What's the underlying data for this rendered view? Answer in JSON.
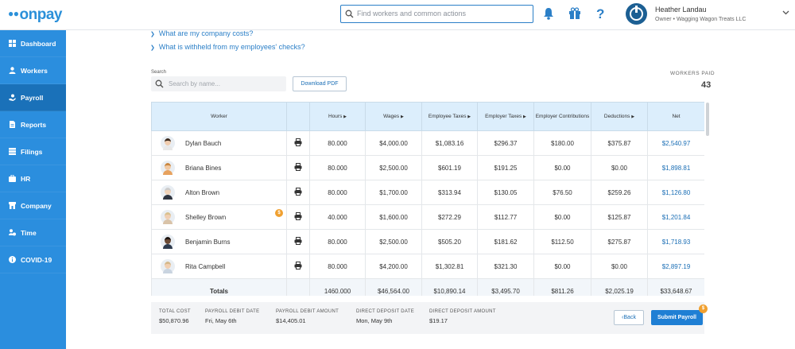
{
  "app": {
    "logo": "onpay"
  },
  "topbar": {
    "search_placeholder": "Find workers and common actions",
    "help_label": "?",
    "user_name": "Heather Landau",
    "user_role": "Owner • Wagging Wagon Treats LLC"
  },
  "sidebar": {
    "items": [
      {
        "label": "Dashboard",
        "icon": "dashboard-icon"
      },
      {
        "label": "Workers",
        "icon": "workers-icon"
      },
      {
        "label": "Payroll",
        "icon": "payroll-icon",
        "active": true
      },
      {
        "label": "Reports",
        "icon": "reports-icon"
      },
      {
        "label": "Filings",
        "icon": "filings-icon"
      },
      {
        "label": "HR",
        "icon": "hr-icon"
      },
      {
        "label": "Company",
        "icon": "company-icon"
      },
      {
        "label": "Time",
        "icon": "time-icon"
      },
      {
        "label": "COVID-19",
        "icon": "info-icon"
      }
    ]
  },
  "faq": [
    "What are my company costs?",
    "What is withheld from my employees' checks?"
  ],
  "search": {
    "label": "Search",
    "placeholder": "Search by name..."
  },
  "download_label": "Download PDF",
  "workers_paid": {
    "label": "WORKERS PAID",
    "count": "43"
  },
  "table": {
    "headers": {
      "worker": "Worker",
      "hours": "Hours",
      "wages": "Wages",
      "employee_taxes": "Employee Taxes",
      "employer_taxes": "Employer Taxes",
      "employer_contributions": "Employer Contributions",
      "deductions": "Deductions",
      "net": "Net"
    },
    "rows": [
      {
        "name": "Dylan Bauch",
        "hours": "80.000",
        "wages": "$4,000.00",
        "employee_taxes": "$1,083.16",
        "employer_taxes": "$296.37",
        "contributions": "$180.00",
        "deductions": "$375.87",
        "net": "$2,540.97",
        "shirt": "#e8e8e8",
        "skin": "#f0cdb0",
        "hair": "#3b2a1e"
      },
      {
        "name": "Briana Bines",
        "hours": "80.000",
        "wages": "$2,500.00",
        "employee_taxes": "$601.19",
        "employer_taxes": "$191.25",
        "contributions": "$0.00",
        "deductions": "$0.00",
        "net": "$1,898.81",
        "shirt": "#e7a25e",
        "skin": "#f1c9a3",
        "hair": "#c9863f"
      },
      {
        "name": "Alton Brown",
        "hours": "80.000",
        "wages": "$1,700.00",
        "employee_taxes": "$313.94",
        "employer_taxes": "$130.05",
        "contributions": "$76.50",
        "deductions": "$259.26",
        "net": "$1,126.80",
        "shirt": "#2e3440",
        "skin": "#efd2b8",
        "hair": "#cccccc"
      },
      {
        "name": "Shelley Brown",
        "hours": "40.000",
        "wages": "$1,600.00",
        "employee_taxes": "$272.29",
        "employer_taxes": "$112.77",
        "contributions": "$0.00",
        "deductions": "$125.87",
        "net": "$1,201.84",
        "shirt": "#d9c3a8",
        "skin": "#f0cfb3",
        "hair": "#d9c08e",
        "badge": "$"
      },
      {
        "name": "Benjamin Burns",
        "hours": "80.000",
        "wages": "$2,500.00",
        "employee_taxes": "$505.20",
        "employer_taxes": "$181.62",
        "contributions": "$112.50",
        "deductions": "$275.87",
        "net": "$1,718.93",
        "shirt": "#2d3a4e",
        "skin": "#6b4a35",
        "hair": "#1c1410"
      },
      {
        "name": "Rita Campbell",
        "hours": "80.000",
        "wages": "$4,200.00",
        "employee_taxes": "$1,302.81",
        "employer_taxes": "$321.30",
        "contributions": "$0.00",
        "deductions": "$0.00",
        "net": "$2,897.19",
        "shirt": "#c9d4e0",
        "skin": "#f1cfb1",
        "hair": "#d4b88a"
      }
    ],
    "totals": {
      "label": "Totals",
      "hours": "1460.000",
      "wages": "$46,564.00",
      "employee_taxes": "$10,890.14",
      "employer_taxes": "$3,495.70",
      "contributions": "$811.26",
      "deductions": "$2,025.19",
      "net": "$33,648.67"
    }
  },
  "footer": {
    "total_cost": {
      "label": "TOTAL COST",
      "value": "$50,870.96"
    },
    "debit_date": {
      "label": "PAYROLL DEBIT DATE",
      "value": "Fri, May 6th"
    },
    "debit_amount": {
      "label": "PAYROLL DEBIT AMOUNT",
      "value": "$14,405.01"
    },
    "deposit_date": {
      "label": "DIRECT DEPOSIT DATE",
      "value": "Mon, May 9th"
    },
    "deposit_amount": {
      "label": "DIRECT DEPOSIT AMOUNT",
      "value": "$19.17"
    },
    "back_label": "Back",
    "submit_label": "Submit Payroll",
    "submit_badge": "$"
  },
  "colors": {
    "brand": "#2b8ede",
    "sidebar_active": "#1a71b9",
    "link": "#1a6eb5",
    "header_bg": "#dceefc",
    "badge": "#f0a030"
  }
}
